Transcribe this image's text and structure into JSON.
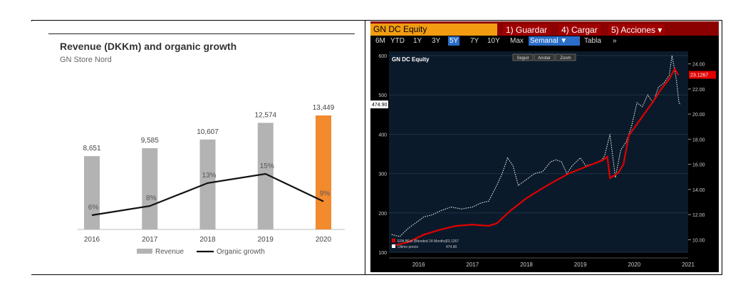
{
  "left": {
    "title": "Revenue (DKKm) and organic growth",
    "subtitle": "GN Store Nord",
    "colors": {
      "bar": "#b3b3b3",
      "highlight": "#f28a2e",
      "line": "#111111"
    }
  },
  "right": {
    "ticker": "GN DC Equity",
    "buttons": [
      "1) Guardar",
      "4) Cargar",
      "5) Acciones ▾"
    ],
    "periods": [
      "6M",
      "YTD",
      "1Y",
      "3Y",
      "5Y",
      "7Y",
      "10Y",
      "Max",
      "Semanal ▼",
      "Tabla",
      "»"
    ],
    "selected_period": "5Y",
    "chart_title": "GN DC Equity",
    "controls": [
      "Seguir",
      "Anotar",
      "Zoom"
    ],
    "legend": [
      {
        "label": "EPA BEst (Blended 24 Months)",
        "value": "23.1267"
      },
      {
        "label": "Último precio",
        "value": "474.90"
      }
    ],
    "colors": {
      "bg": "#000000",
      "plot": "#0b1a2a",
      "eps": "#e00000",
      "price": "#ffffff",
      "ticker": "#f39c12"
    }
  },
  "chart_data": [
    {
      "type": "bar",
      "title": "Revenue (DKKm) and organic growth",
      "subtitle": "GN Store Nord",
      "categories": [
        "2016",
        "2017",
        "2018",
        "2019",
        "2020"
      ],
      "series": [
        {
          "name": "Revenue",
          "type": "bar",
          "values": [
            8651,
            9585,
            10607,
            12574,
            13449
          ],
          "labels": [
            "8,651",
            "9,585",
            "10,607",
            "12,574",
            "13,449"
          ]
        },
        {
          "name": "Organic growth",
          "type": "line",
          "values": [
            6,
            8,
            13,
            15,
            9
          ],
          "labels": [
            "6%",
            "8%",
            "13%",
            "15%",
            "9%"
          ]
        }
      ],
      "highlight_category": "2020",
      "legend": "bottom"
    },
    {
      "type": "line",
      "title": "GN DC Equity",
      "x_labels": [
        "2016",
        "2017",
        "2018",
        "2019",
        "2020",
        "2021"
      ],
      "left_axis": {
        "ticks": [
          "100",
          "200",
          "300",
          "400",
          "500",
          "600"
        ],
        "ylim": [
          100,
          600
        ]
      },
      "right_axis": {
        "ticks": [
          "10.00",
          "12.00",
          "14.00",
          "16.00",
          "18.00",
          "20.00",
          "22.00",
          "24.00"
        ],
        "ylim": [
          9,
          25
        ]
      },
      "series": [
        {
          "name": "EPA BEst (Blended 24 Months)",
          "axis": "right",
          "last_value": "23.1267",
          "points": [
            [
              2016.0,
              9.5
            ],
            [
              2016.3,
              9.8
            ],
            [
              2016.6,
              10.4
            ],
            [
              2016.9,
              10.8
            ],
            [
              2017.2,
              11.1
            ],
            [
              2017.5,
              11.2
            ],
            [
              2017.8,
              11.1
            ],
            [
              2017.95,
              11.3
            ],
            [
              2018.2,
              12.3
            ],
            [
              2018.5,
              13.3
            ],
            [
              2018.8,
              14.1
            ],
            [
              2019.0,
              14.6
            ],
            [
              2019.3,
              15.3
            ],
            [
              2019.6,
              15.8
            ],
            [
              2019.9,
              16.3
            ],
            [
              2020.0,
              16.6
            ],
            [
              2020.05,
              14.9
            ],
            [
              2020.2,
              15.3
            ],
            [
              2020.3,
              16.0
            ],
            [
              2020.4,
              18.3
            ],
            [
              2020.6,
              19.5
            ],
            [
              2020.85,
              21.0
            ],
            [
              2021.0,
              22.0
            ],
            [
              2021.15,
              22.8
            ],
            [
              2021.25,
              23.6
            ],
            [
              2021.32,
              23.1
            ]
          ]
        },
        {
          "name": "Último precio",
          "axis": "left",
          "last_value": "474.90",
          "points": [
            [
              2016.0,
              145
            ],
            [
              2016.15,
              140
            ],
            [
              2016.3,
              160
            ],
            [
              2016.45,
              175
            ],
            [
              2016.6,
              190
            ],
            [
              2016.75,
              195
            ],
            [
              2016.9,
              205
            ],
            [
              2017.1,
              215
            ],
            [
              2017.3,
              210
            ],
            [
              2017.5,
              215
            ],
            [
              2017.65,
              225
            ],
            [
              2017.8,
              230
            ],
            [
              2017.95,
              270
            ],
            [
              2018.05,
              300
            ],
            [
              2018.15,
              340
            ],
            [
              2018.25,
              320
            ],
            [
              2018.35,
              270
            ],
            [
              2018.5,
              285
            ],
            [
              2018.65,
              300
            ],
            [
              2018.8,
              305
            ],
            [
              2018.95,
              330
            ],
            [
              2019.05,
              335
            ],
            [
              2019.15,
              330
            ],
            [
              2019.25,
              300
            ],
            [
              2019.35,
              320
            ],
            [
              2019.5,
              340
            ],
            [
              2019.6,
              320
            ],
            [
              2019.75,
              325
            ],
            [
              2019.9,
              335
            ],
            [
              2019.95,
              345
            ],
            [
              2020.05,
              400
            ],
            [
              2020.15,
              290
            ],
            [
              2020.25,
              360
            ],
            [
              2020.35,
              380
            ],
            [
              2020.45,
              420
            ],
            [
              2020.55,
              480
            ],
            [
              2020.65,
              470
            ],
            [
              2020.75,
              500
            ],
            [
              2020.85,
              480
            ],
            [
              2020.95,
              520
            ],
            [
              2021.05,
              530
            ],
            [
              2021.15,
              550
            ],
            [
              2021.2,
              600
            ],
            [
              2021.28,
              540
            ],
            [
              2021.33,
              480
            ],
            [
              2021.36,
              474.9
            ]
          ]
        }
      ],
      "legend": "bottom-left"
    }
  ]
}
